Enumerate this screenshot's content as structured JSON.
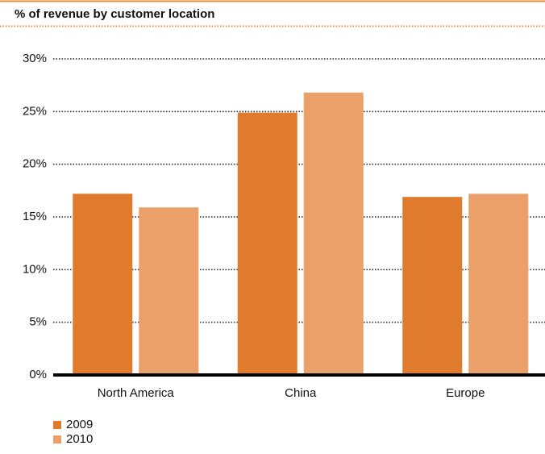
{
  "chart_data": {
    "type": "bar",
    "title": "% of revenue by customer location",
    "categories": [
      "North America",
      "China",
      "Europe"
    ],
    "series": [
      {
        "name": "2009",
        "color": "#e07b2e",
        "values": [
          17.2,
          24.9,
          16.9
        ]
      },
      {
        "name": "2010",
        "color": "#eaa068",
        "values": [
          15.9,
          26.8,
          17.2
        ]
      }
    ],
    "ylim": [
      0,
      30
    ],
    "yticks": [
      {
        "value": 0,
        "label": "0%"
      },
      {
        "value": 5,
        "label": "5%"
      },
      {
        "value": 10,
        "label": "10%"
      },
      {
        "value": 15,
        "label": "15%"
      },
      {
        "value": 20,
        "label": "20%"
      },
      {
        "value": 25,
        "label": "25%"
      },
      {
        "value": 30,
        "label": "30%"
      }
    ],
    "grid": true
  }
}
